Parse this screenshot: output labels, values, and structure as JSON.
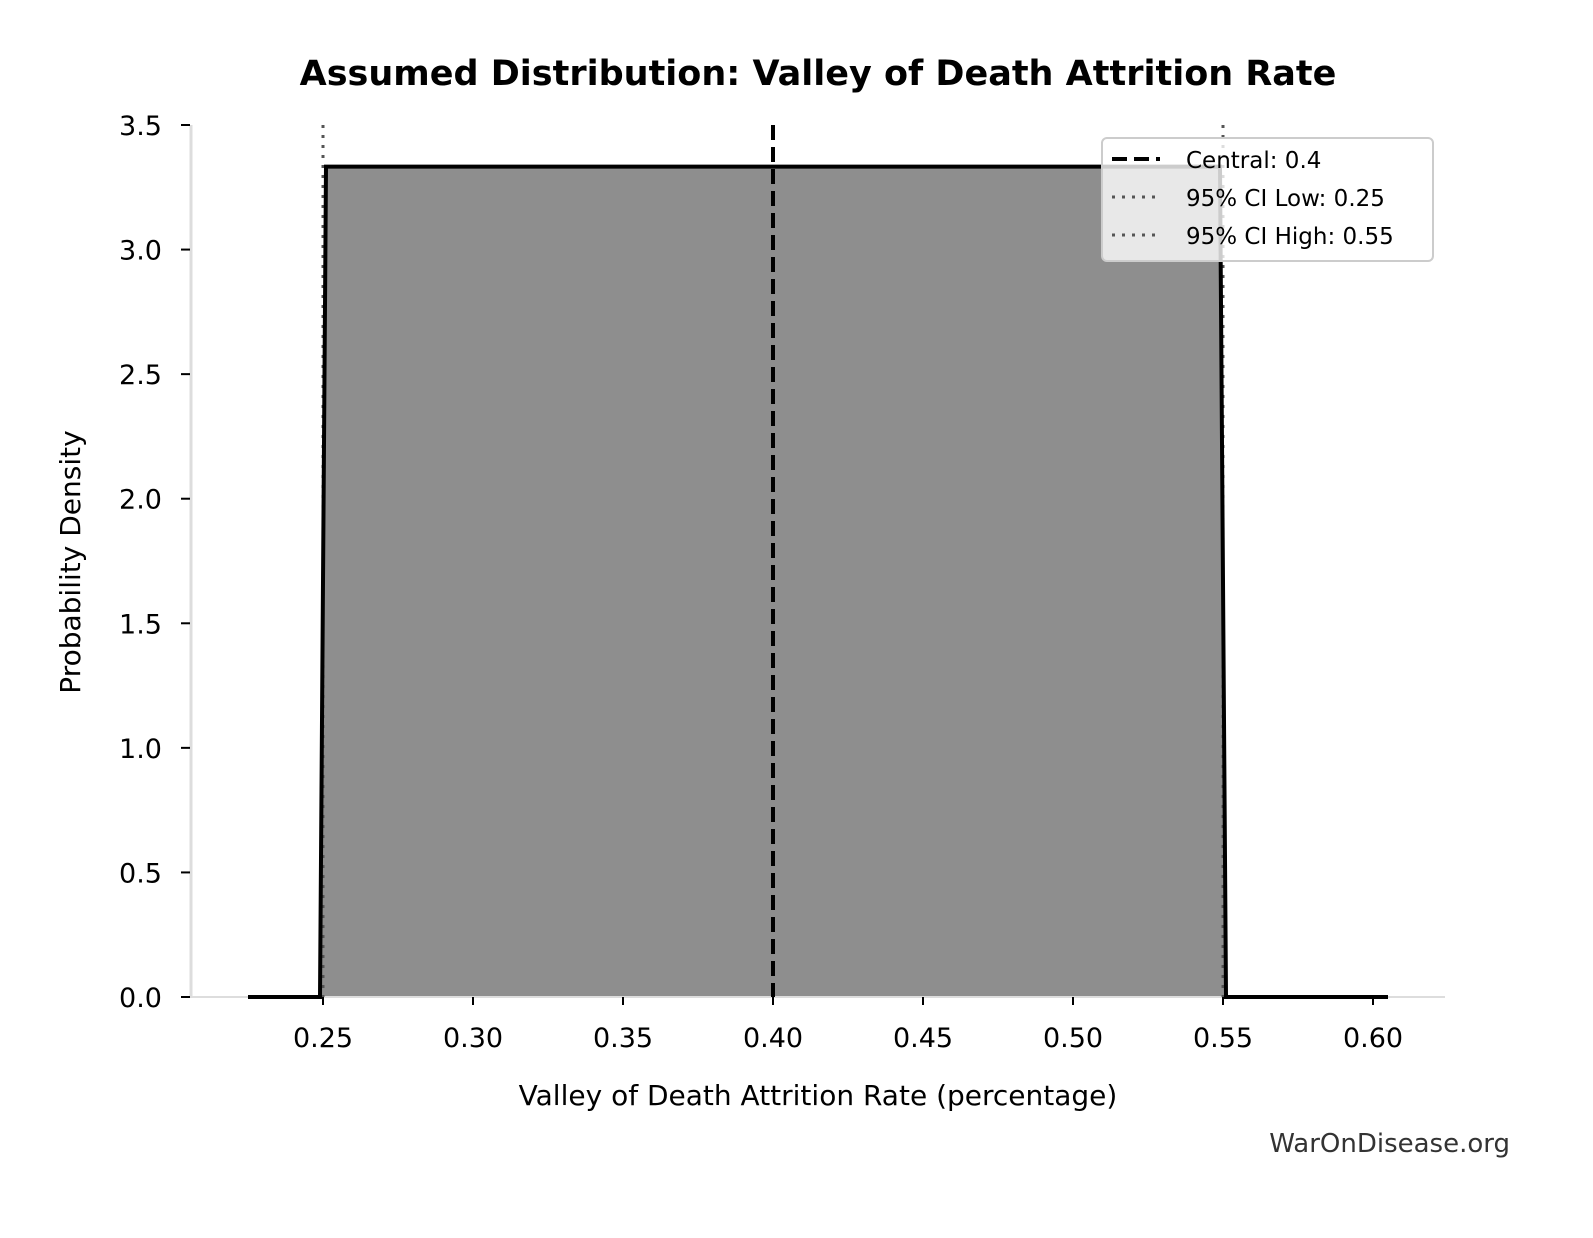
{
  "chart_data": {
    "type": "area",
    "title": "Assumed Distribution: Valley of Death Attrition Rate",
    "xlabel": "Valley of Death Attrition Rate (percentage)",
    "ylabel": "Probability Density",
    "xlim": [
      0.208,
      0.624
    ],
    "ylim": [
      0,
      3.5
    ],
    "x_ticks": [
      "0.25",
      "0.30",
      "0.35",
      "0.40",
      "0.45",
      "0.50",
      "0.55",
      "0.60"
    ],
    "y_ticks": [
      "0.0",
      "0.5",
      "1.0",
      "1.5",
      "2.0",
      "2.5",
      "3.0",
      "3.5"
    ],
    "grid": false,
    "legend_placement": "top-right",
    "distribution": {
      "kind": "uniform",
      "x": [
        0.225,
        0.249,
        0.251,
        0.549,
        0.551,
        0.605
      ],
      "y": [
        0,
        0,
        3.333,
        3.333,
        0,
        0
      ],
      "fill_color": "#8e8e8e",
      "line_color": "#000000"
    },
    "reference_lines": [
      {
        "name": "Central: 0.4",
        "x": 0.4,
        "style": "dashed",
        "color": "#000000"
      },
      {
        "name": "95% CI Low: 0.25",
        "x": 0.25,
        "style": "dotted",
        "color": "#555555"
      },
      {
        "name": "95% CI High: 0.55",
        "x": 0.55,
        "style": "dotted",
        "color": "#555555"
      }
    ]
  },
  "watermark": "WarOnDisease.org"
}
